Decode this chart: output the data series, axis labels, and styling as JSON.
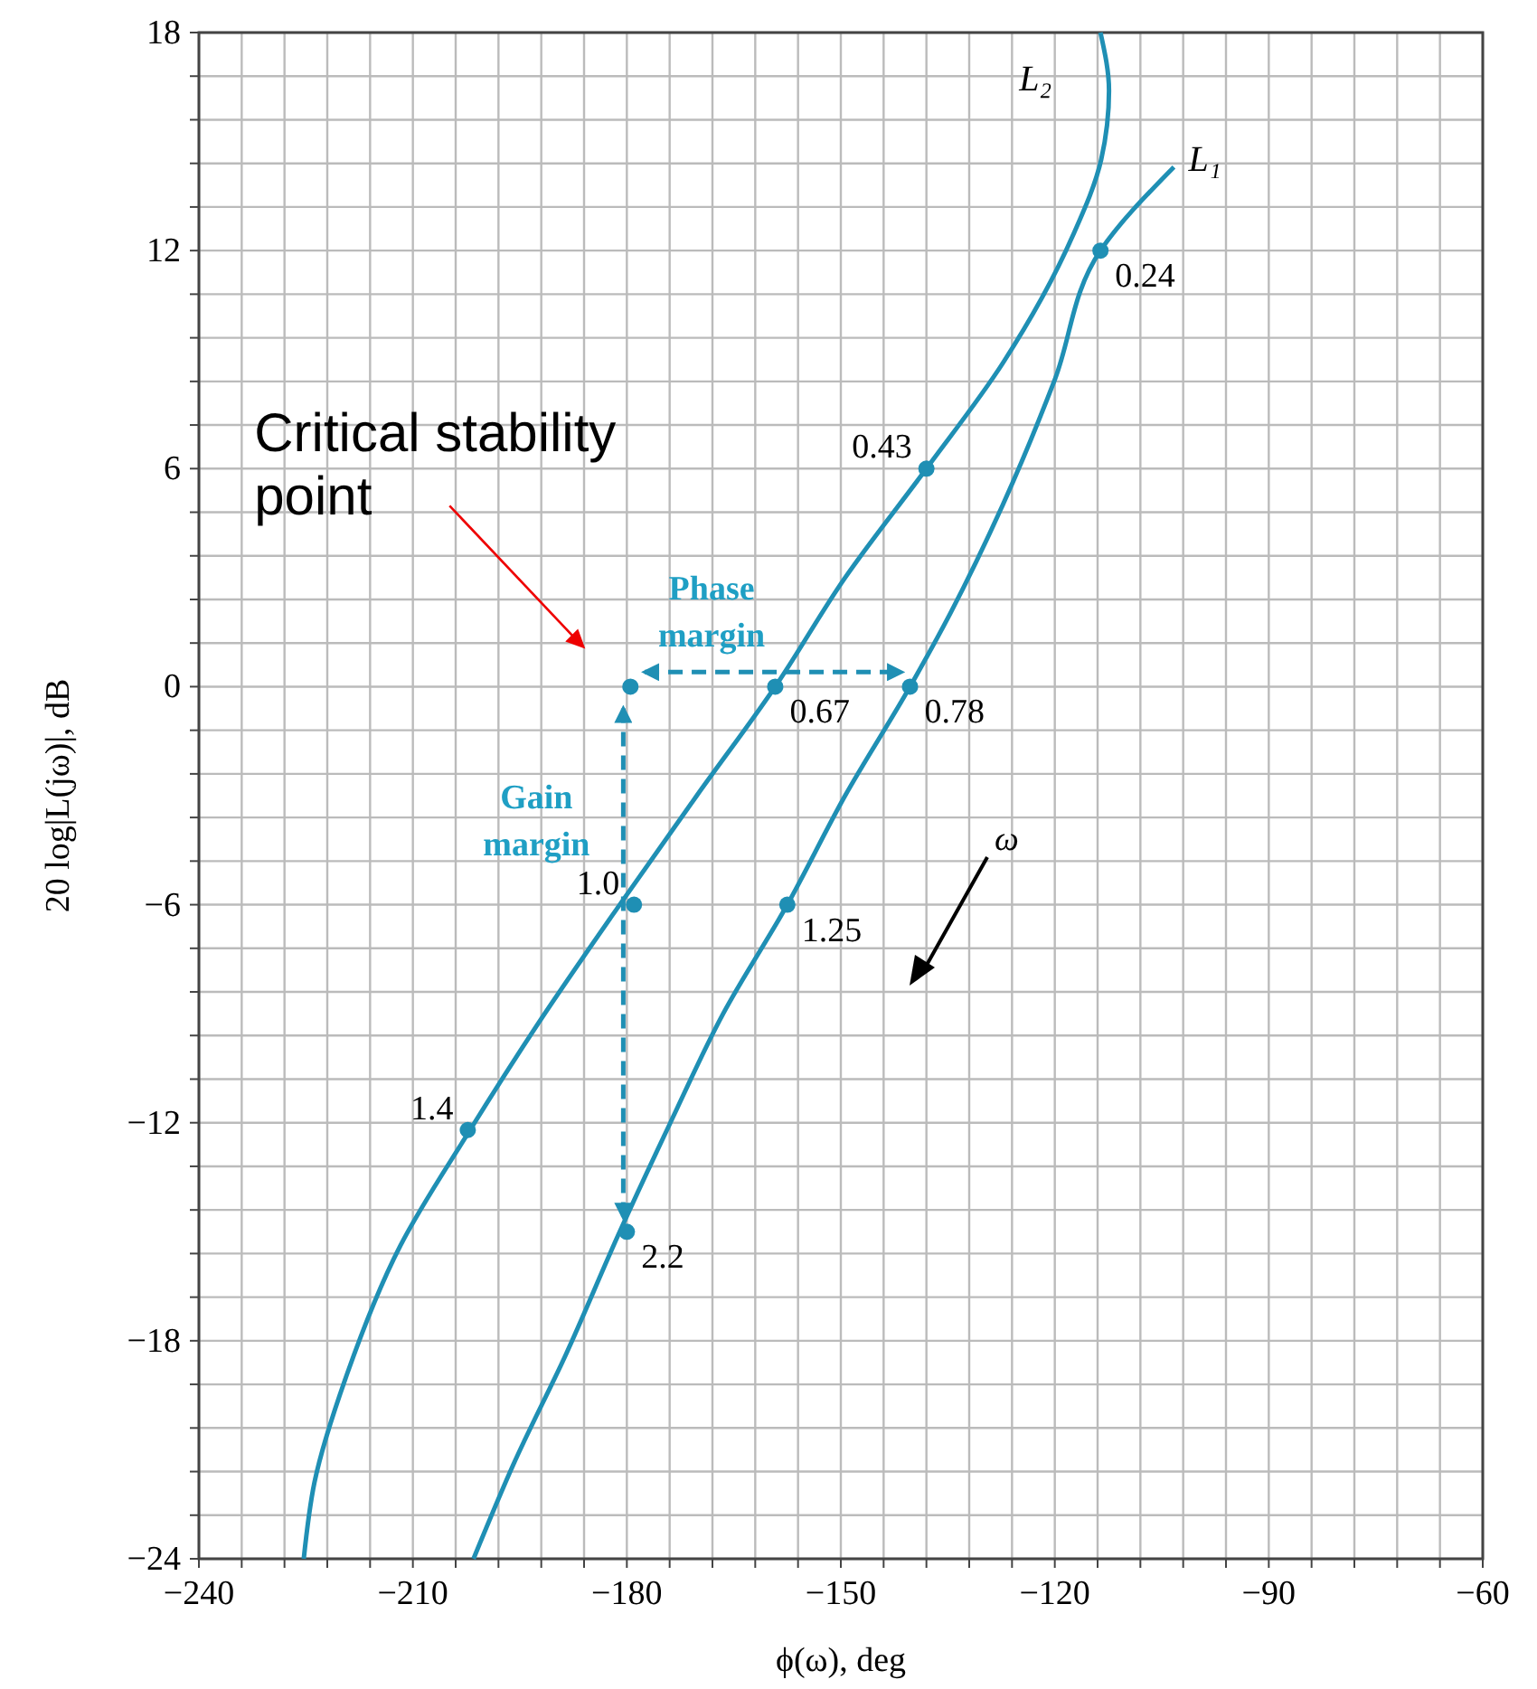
{
  "chart_data": {
    "type": "line",
    "xlabel": "ϕ(ω), deg",
    "ylabel": "20 log|L(jω)|, dB",
    "xlim": [
      -240,
      -60
    ],
    "ylim": [
      -24,
      18
    ],
    "xticks": [
      {
        "value": -240,
        "label": "−240"
      },
      {
        "value": -234,
        "label": null
      },
      {
        "value": -228,
        "label": null
      },
      {
        "value": -222,
        "label": null
      },
      {
        "value": -216,
        "label": null
      },
      {
        "value": -210,
        "label": "−210"
      },
      {
        "value": -204,
        "label": null
      },
      {
        "value": -198,
        "label": null
      },
      {
        "value": -192,
        "label": null
      },
      {
        "value": -186,
        "label": null
      },
      {
        "value": -180,
        "label": "−180"
      },
      {
        "value": -174,
        "label": null
      },
      {
        "value": -168,
        "label": null
      },
      {
        "value": -162,
        "label": null
      },
      {
        "value": -156,
        "label": null
      },
      {
        "value": -150,
        "label": "−150"
      },
      {
        "value": -144,
        "label": null
      },
      {
        "value": -138,
        "label": null
      },
      {
        "value": -132,
        "label": null
      },
      {
        "value": -126,
        "label": null
      },
      {
        "value": -120,
        "label": "−120"
      },
      {
        "value": -114,
        "label": null
      },
      {
        "value": -108,
        "label": null
      },
      {
        "value": -102,
        "label": null
      },
      {
        "value": -96,
        "label": null
      },
      {
        "value": -90,
        "label": "−90"
      },
      {
        "value": -84,
        "label": null
      },
      {
        "value": -78,
        "label": null
      },
      {
        "value": -72,
        "label": null
      },
      {
        "value": -66,
        "label": null
      },
      {
        "value": -60,
        "label": "−60"
      }
    ],
    "yticks": [
      18,
      {
        "value": 16.8,
        "label": null
      },
      {
        "value": 15.6,
        "label": null
      },
      {
        "value": 14.4,
        "label": null
      },
      {
        "value": 13.2,
        "label": null
      },
      12,
      {
        "value": 10.8,
        "label": null
      },
      {
        "value": 9.6,
        "label": null
      },
      {
        "value": 8.4,
        "label": null
      },
      {
        "value": 7.2,
        "label": null
      },
      6,
      {
        "value": 4.8,
        "label": null
      },
      {
        "value": 3.6,
        "label": null
      },
      {
        "value": 2.4,
        "label": null
      },
      {
        "value": 1.2,
        "label": null
      },
      0,
      {
        "value": -1.2,
        "label": null
      },
      {
        "value": -2.4,
        "label": null
      },
      {
        "value": -3.6,
        "label": null
      },
      {
        "value": -4.8,
        "label": null
      },
      {
        "value": -6,
        "label": "−6"
      },
      {
        "value": -7.2,
        "label": null
      },
      {
        "value": -8.4,
        "label": null
      },
      {
        "value": -9.6,
        "label": null
      },
      {
        "value": -10.8,
        "label": null
      },
      {
        "value": -12,
        "label": "−12"
      },
      {
        "value": -13.2,
        "label": null
      },
      {
        "value": -14.4,
        "label": null
      },
      {
        "value": -15.6,
        "label": null
      },
      {
        "value": -16.8,
        "label": null
      },
      {
        "value": -18,
        "label": "−18"
      },
      {
        "value": -19.2,
        "label": null
      },
      {
        "value": -20.4,
        "label": null
      },
      {
        "value": -21.6,
        "label": null
      },
      {
        "value": -22.8,
        "label": null
      },
      {
        "value": -24,
        "label": "−24"
      }
    ],
    "grid": true,
    "legend": false,
    "series": [
      {
        "name": "L₂",
        "color": "#1f8fb4",
        "x": [
          -113.6,
          -112.4,
          -113.5,
          -117.5,
          -127.3,
          -138,
          -149.4,
          -159.2,
          -170.2,
          -181,
          -192.2,
          -202.3,
          -211.8,
          -219.2,
          -223.8,
          -225.3
        ],
        "values": [
          18,
          16.4,
          14.5,
          12.4,
          8.9,
          6,
          3,
          0,
          -3,
          -6,
          -9.2,
          -12.3,
          -15.4,
          -18.9,
          -21.9,
          -24
        ]
      },
      {
        "name": "L₁",
        "color": "#1f8fb4",
        "x": [
          -103.3,
          -113.6,
          -120,
          -127.3,
          -134.7,
          -140.3,
          -149.4,
          -157.5,
          -166.5,
          -173.9,
          -181,
          -188.6,
          -195.9,
          -201.5
        ],
        "values": [
          14.3,
          12,
          8.45,
          5,
          2,
          0,
          -3,
          -6,
          -9,
          -12,
          -15,
          -18.4,
          -21.4,
          -24
        ]
      },
      {
        "type": "scatter",
        "color": "#1f8fb4",
        "marker": "circle",
        "x": [
          -113.6,
          -140.3,
          -157.5,
          -180,
          -159.2
        ],
        "values": [
          12,
          0,
          -6,
          -15,
          0
        ]
      },
      {
        "type": "scatter",
        "color": "#1f8fb4",
        "marker": "circle",
        "x": [
          -138,
          -179,
          -202.3
        ],
        "values": [
          6,
          -6,
          -12.2
        ]
      },
      {
        "type": "scatter",
        "color": "#1f8fb4",
        "marker": "circle",
        "x": [
          -179.5
        ],
        "values": [
          0
        ]
      },
      {
        "color": "#1f8fb4",
        "line_style": "dashed",
        "x": [
          -177.5,
          -141.5
        ],
        "values": [
          0.4,
          0.4
        ]
      },
      {
        "color": "#1f8fb4",
        "line_style": "dashed",
        "x": [
          -180.5,
          -180.5
        ],
        "values": [
          -0.6,
          -14.6
        ]
      }
    ],
    "annotations": [
      {
        "text": "Critical stability point",
        "x": -179.5,
        "y": 0
      },
      "Phase margin",
      "Gain margin",
      "ω",
      {
        "text": "0.24",
        "x": -113.6,
        "y": 12
      },
      {
        "text": "0.78",
        "x": -140.3,
        "y": 0
      },
      {
        "text": "1.25",
        "x": -157.5,
        "y": -6
      },
      {
        "text": "2.2",
        "x": -180,
        "y": -15
      },
      {
        "text": "0.67",
        "x": -159.2,
        "y": 0
      },
      {
        "text": "0.43",
        "x": -138,
        "y": 6
      },
      {
        "text": "1.0",
        "x": -179,
        "y": -6
      },
      {
        "text": "1.4",
        "x": -202.3,
        "y": -12.2
      }
    ]
  }
}
